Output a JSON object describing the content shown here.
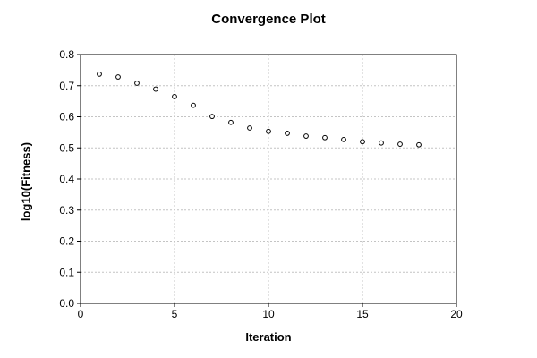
{
  "chart_data": {
    "type": "scatter",
    "title": "Convergence Plot",
    "xlabel": "Iteration",
    "ylabel": "log10(Fitness)",
    "x": [
      1,
      2,
      3,
      4,
      5,
      6,
      7,
      8,
      9,
      10,
      11,
      12,
      13,
      14,
      15,
      16,
      17,
      18
    ],
    "y": [
      0.737,
      0.728,
      0.708,
      0.689,
      0.665,
      0.637,
      0.601,
      0.582,
      0.564,
      0.553,
      0.547,
      0.538,
      0.533,
      0.527,
      0.52,
      0.516,
      0.512,
      0.51
    ],
    "xlim": [
      0,
      20
    ],
    "ylim": [
      0,
      0.8
    ],
    "xticks": [
      0,
      5,
      10,
      15,
      20
    ],
    "yticks": [
      0,
      0.1,
      0.2,
      0.3,
      0.4,
      0.5,
      0.6,
      0.7,
      0.8
    ],
    "xtick_labels": [
      "0",
      "5",
      "10",
      "15",
      "20"
    ],
    "ytick_labels": [
      "0.0",
      "0.1",
      "0.2",
      "0.3",
      "0.4",
      "0.5",
      "0.6",
      "0.7",
      "0.8"
    ],
    "grid": true,
    "grid_style": "dashed",
    "legend": false,
    "marker": {
      "shape": "open-circle",
      "color": "#000000",
      "fill": "#ffffff",
      "radius": 2.4
    },
    "grid_color": "#c4c4c4",
    "axis_color": "#000000",
    "text_color": "#000000",
    "background": "#ffffff"
  }
}
